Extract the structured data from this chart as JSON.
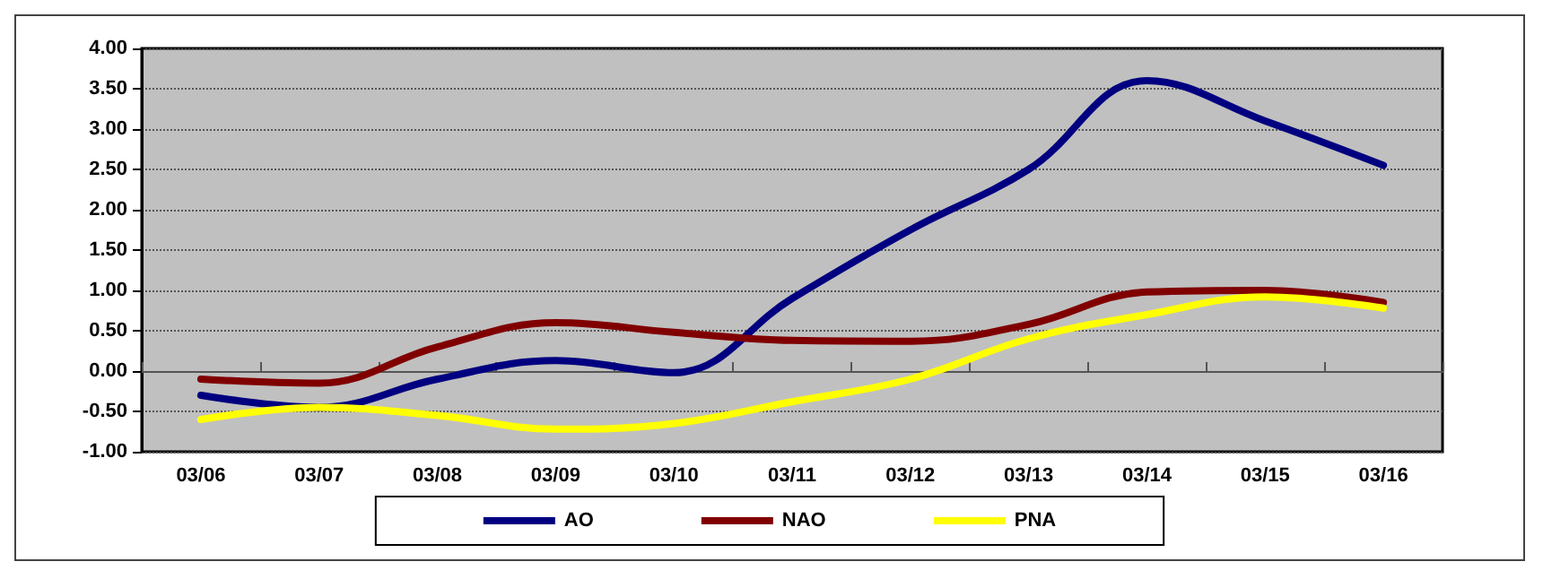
{
  "chart_data": {
    "type": "line",
    "categories": [
      "03/06",
      "03/07",
      "03/08",
      "03/09",
      "03/10",
      "03/11",
      "03/12",
      "03/13",
      "03/14",
      "03/15",
      "03/16"
    ],
    "series": [
      {
        "name": "AO",
        "color": "#000080",
        "values": [
          -0.3,
          -0.45,
          -0.1,
          0.13,
          -0.02,
          0.9,
          1.75,
          2.5,
          3.6,
          3.1,
          2.55
        ]
      },
      {
        "name": "NAO",
        "color": "#800000",
        "values": [
          -0.1,
          -0.15,
          0.3,
          0.6,
          0.48,
          0.38,
          0.37,
          0.58,
          0.98,
          1.0,
          0.85
        ]
      },
      {
        "name": "PNA",
        "color": "#ffff00",
        "values": [
          -0.6,
          -0.45,
          -0.55,
          -0.72,
          -0.65,
          -0.38,
          -0.1,
          0.4,
          0.7,
          0.92,
          0.78
        ]
      }
    ],
    "ylim": [
      -1,
      4
    ],
    "yticks": [
      {
        "value": -1,
        "label": "-1.00"
      },
      {
        "value": -0.5,
        "label": "-0.50"
      },
      {
        "value": 0,
        "label": "0.00"
      },
      {
        "value": 0.5,
        "label": "0.50"
      },
      {
        "value": 1,
        "label": "1.00"
      },
      {
        "value": 1.5,
        "label": "1.50"
      },
      {
        "value": 2,
        "label": "2.00"
      },
      {
        "value": 2.5,
        "label": "2.50"
      },
      {
        "value": 3,
        "label": "3.00"
      },
      {
        "value": 3.5,
        "label": "3.50"
      },
      {
        "value": 4,
        "label": "4.00"
      }
    ],
    "grid": "y",
    "legend": "bottom",
    "marker": "none",
    "line_style": "solid"
  }
}
